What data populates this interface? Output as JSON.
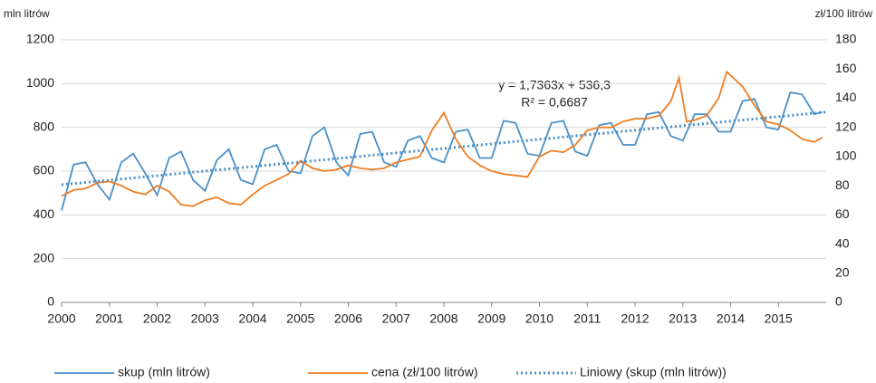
{
  "chart_data": {
    "type": "line",
    "y_label": "mln litrów",
    "y2_label": "zł/100 litrów",
    "annotations": [
      "y = 1,7363x + 536,3",
      "R² = 0,6687"
    ],
    "xlim": [
      2000,
      2016
    ],
    "xticks": [
      2000,
      2001,
      2002,
      2003,
      2004,
      2005,
      2006,
      2007,
      2008,
      2009,
      2010,
      2011,
      2012,
      2013,
      2014,
      2015
    ],
    "ylim": [
      0,
      1200
    ],
    "yticks": [
      0,
      200,
      400,
      600,
      800,
      1000,
      1200
    ],
    "y2lim": [
      0,
      180
    ],
    "y2ticks": [
      0,
      20,
      40,
      60,
      80,
      100,
      120,
      140,
      160,
      180
    ],
    "grid": true,
    "series": [
      {
        "name": "skup (mln litrów)",
        "color": "#4a90c8",
        "axis": "y",
        "dashed": false,
        "x": [
          2000,
          2000.25,
          2000.5,
          2000.75,
          2001,
          2001.25,
          2001.5,
          2001.75,
          2002,
          2002.25,
          2002.5,
          2002.75,
          2003,
          2003.25,
          2003.5,
          2003.75,
          2004,
          2004.25,
          2004.5,
          2004.75,
          2005,
          2005.25,
          2005.5,
          2005.75,
          2006,
          2006.25,
          2006.5,
          2006.75,
          2007,
          2007.25,
          2007.5,
          2007.75,
          2008,
          2008.25,
          2008.5,
          2008.75,
          2009,
          2009.25,
          2009.5,
          2009.75,
          2010,
          2010.25,
          2010.5,
          2010.75,
          2011,
          2011.25,
          2011.5,
          2011.75,
          2012,
          2012.25,
          2012.5,
          2012.75,
          2013,
          2013.25,
          2013.5,
          2013.75,
          2014,
          2014.25,
          2014.5,
          2014.75,
          2015,
          2015.25,
          2015.5,
          2015.75,
          2015.92
        ],
        "values": [
          420,
          630,
          640,
          540,
          470,
          640,
          680,
          590,
          490,
          660,
          690,
          560,
          510,
          650,
          700,
          560,
          540,
          700,
          720,
          600,
          590,
          760,
          800,
          640,
          580,
          770,
          780,
          640,
          620,
          740,
          760,
          660,
          640,
          780,
          790,
          660,
          660,
          830,
          820,
          680,
          670,
          820,
          830,
          690,
          670,
          810,
          820,
          720,
          720,
          860,
          870,
          760,
          740,
          860,
          860,
          780,
          780,
          920,
          930,
          800,
          790,
          960,
          950,
          860,
          870
        ]
      },
      {
        "name": "cena (zł/100 litrów)",
        "color": "#ee7d22",
        "axis": "y2",
        "dashed": false,
        "x": [
          2000,
          2000.25,
          2000.5,
          2000.75,
          2001,
          2001.25,
          2001.5,
          2001.75,
          2002,
          2002.25,
          2002.5,
          2002.75,
          2003,
          2003.25,
          2003.5,
          2003.75,
          2004,
          2004.25,
          2004.5,
          2004.75,
          2005,
          2005.25,
          2005.5,
          2005.75,
          2006,
          2006.25,
          2006.5,
          2006.75,
          2007,
          2007.25,
          2007.5,
          2007.75,
          2008,
          2008.25,
          2008.5,
          2008.75,
          2009,
          2009.25,
          2009.5,
          2009.75,
          2010,
          2010.25,
          2010.5,
          2010.75,
          2011,
          2011.25,
          2011.5,
          2011.75,
          2012,
          2012.25,
          2012.5,
          2012.75,
          2012.92,
          2013.08,
          2013.25,
          2013.5,
          2013.75,
          2013.92,
          2014.25,
          2014.5,
          2014.75,
          2015,
          2015.25,
          2015.5,
          2015.75,
          2015.92
        ],
        "values": [
          73,
          77,
          78,
          82,
          83,
          80,
          76,
          74,
          80,
          76,
          67,
          66,
          70,
          72,
          68,
          67,
          74,
          80,
          84,
          88,
          97,
          92,
          90,
          91,
          94,
          92,
          91,
          92,
          96,
          98,
          100,
          118,
          130,
          112,
          100,
          94,
          90,
          88,
          87,
          86,
          100,
          104,
          103,
          108,
          118,
          120,
          120,
          124,
          126,
          126,
          128,
          138,
          154,
          124,
          125,
          128,
          140,
          158,
          148,
          135,
          124,
          122,
          118,
          112,
          110,
          113
        ]
      },
      {
        "name": "Liniowy (skup (mln litrów))",
        "color": "#4a90c8",
        "axis": "y",
        "dashed": true,
        "x": [
          2000,
          2016
        ],
        "values": [
          538,
          870
        ]
      }
    ]
  }
}
